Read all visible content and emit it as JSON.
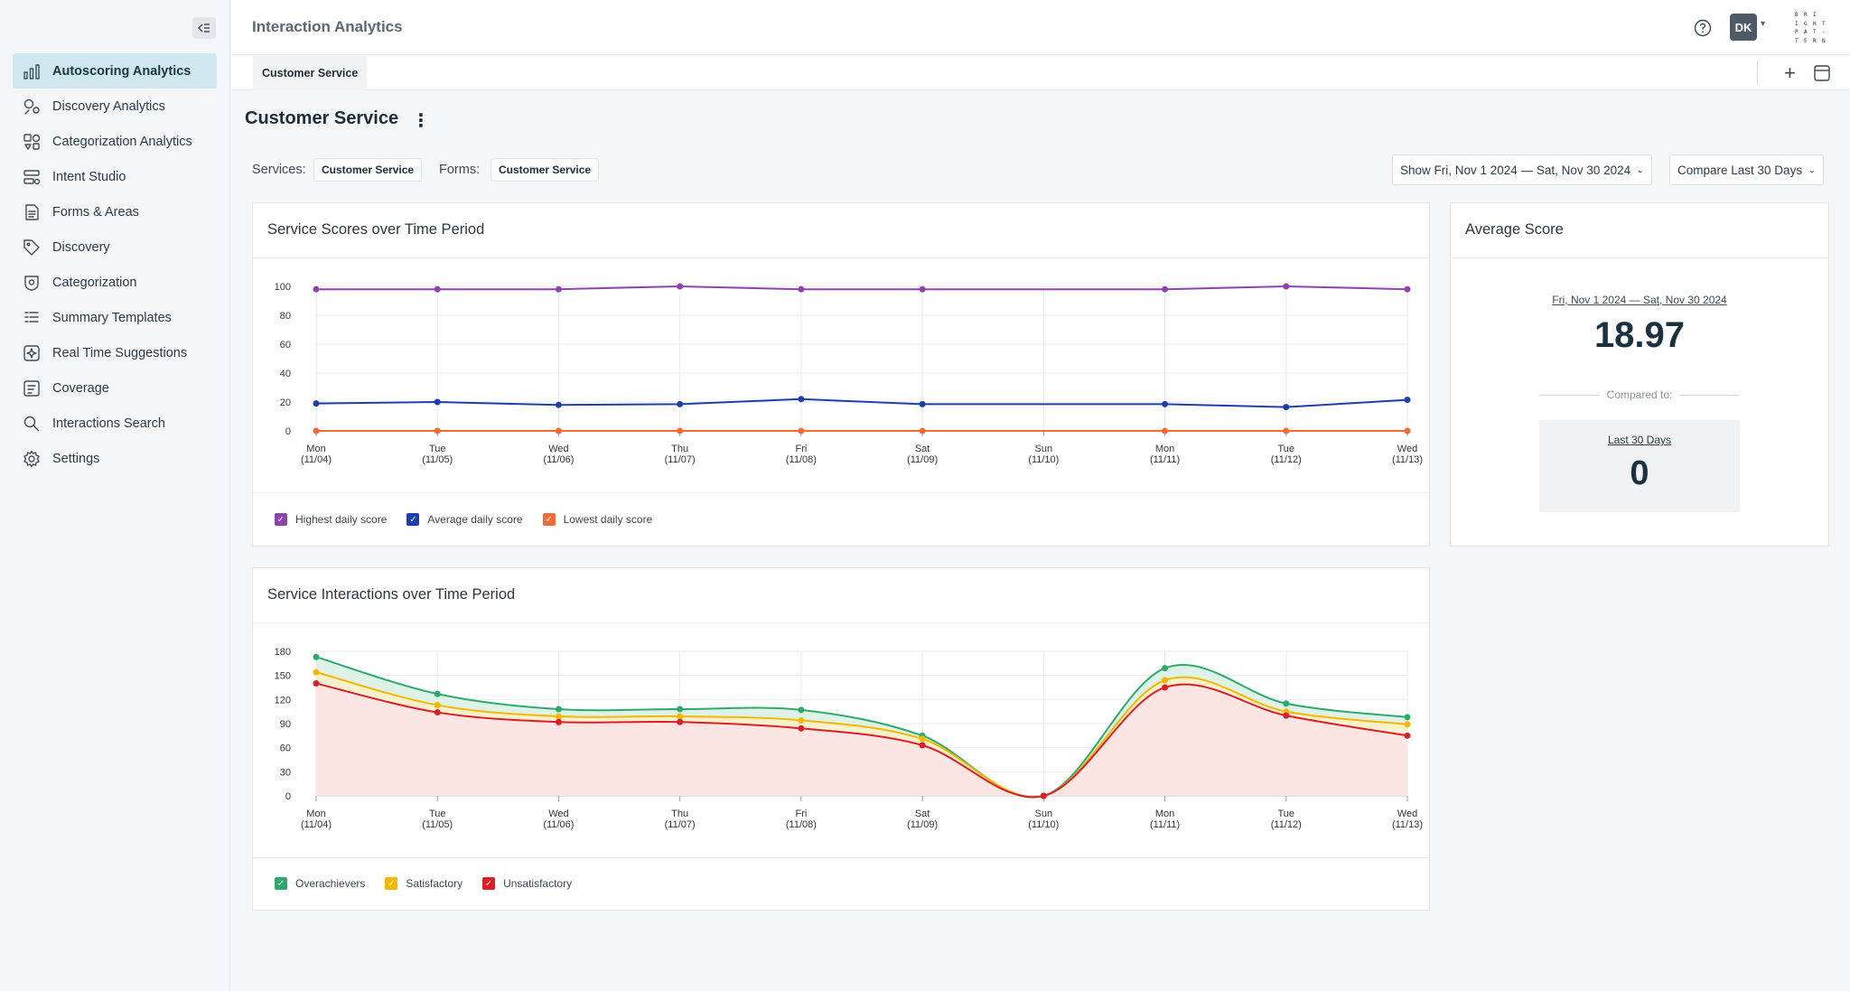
{
  "sidebar": {
    "items": [
      {
        "label": "Autoscoring Analytics",
        "icon": "bar-chart-icon",
        "active": true
      },
      {
        "label": "Discovery Analytics",
        "icon": "discovery-analytics-icon"
      },
      {
        "label": "Categorization Analytics",
        "icon": "categorization-analytics-icon"
      },
      {
        "label": "Intent Studio",
        "icon": "intent-studio-icon"
      },
      {
        "label": "Forms & Areas",
        "icon": "document-icon"
      },
      {
        "label": "Discovery",
        "icon": "tag-icon"
      },
      {
        "label": "Categorization",
        "icon": "category-shield-icon"
      },
      {
        "label": "Summary Templates",
        "icon": "list-icon"
      },
      {
        "label": "Real Time Suggestions",
        "icon": "sparkle-icon"
      },
      {
        "label": "Coverage",
        "icon": "coverage-icon"
      },
      {
        "label": "Interactions Search",
        "icon": "search-icon"
      },
      {
        "label": "Settings",
        "icon": "gear-icon"
      }
    ]
  },
  "topbar": {
    "title": "Interaction Analytics",
    "avatar": "DK",
    "logo_letters": [
      "B",
      "R",
      "I",
      "",
      "I",
      "G",
      "H",
      "T",
      "P",
      "A",
      "T",
      "-",
      "T",
      "E",
      "R",
      "N"
    ]
  },
  "tabs": [
    {
      "label": "Customer Service"
    }
  ],
  "header": {
    "title": "Customer Service"
  },
  "filters": {
    "services_label": "Services:",
    "services_value": "Customer Service",
    "forms_label": "Forms:",
    "forms_value": "Customer Service",
    "date_range": "Show Fri, Nov 1 2024 — Sat, Nov 30 2024",
    "compare": "Compare Last 30 Days"
  },
  "scores_card": {
    "title": "Service Scores over Time Period"
  },
  "interactions_card": {
    "title": "Service Interactions over Time Period"
  },
  "average_card": {
    "title": "Average Score",
    "range": "Fri, Nov 1 2024 — Sat, Nov 30 2024",
    "value": "18.97",
    "compared_label": "Compared to:",
    "compare_period": "Last 30 Days",
    "compare_value": "0"
  },
  "chart_data": [
    {
      "type": "line",
      "title": "Service Scores over Time Period",
      "x": [
        "Mon (11/04)",
        "Tue (11/05)",
        "Wed (11/06)",
        "Thu (11/07)",
        "Fri (11/08)",
        "Sat (11/09)",
        "Sun (11/10)",
        "Mon (11/11)",
        "Tue (11/12)",
        "Wed (11/13)"
      ],
      "x_day": [
        "Mon",
        "Tue",
        "Wed",
        "Thu",
        "Fri",
        "Sat",
        "Sun",
        "Mon",
        "Tue",
        "Wed"
      ],
      "x_date": [
        "(11/04)",
        "(11/05)",
        "(11/06)",
        "(11/07)",
        "(11/08)",
        "(11/09)",
        "(11/10)",
        "(11/11)",
        "(11/12)",
        "(11/13)"
      ],
      "yticks": [
        0,
        20,
        40,
        60,
        80,
        100
      ],
      "ylim": [
        0,
        100
      ],
      "series": [
        {
          "name": "Highest daily score",
          "color": "#8e44ad",
          "values": [
            98,
            98,
            98,
            100,
            98,
            98,
            null,
            98,
            100,
            98
          ]
        },
        {
          "name": "Average daily score",
          "color": "#1f3fa8",
          "values": [
            19,
            20,
            18,
            18.5,
            22,
            18.5,
            null,
            18.5,
            16.5,
            21.5
          ]
        },
        {
          "name": "Lowest daily score",
          "color": "#f26b3a",
          "values": [
            0,
            0,
            0,
            0,
            0,
            0,
            null,
            0,
            0,
            0
          ]
        }
      ],
      "legend": "bottom-left"
    },
    {
      "type": "area",
      "title": "Service Interactions over Time Period",
      "x": [
        "Mon (11/04)",
        "Tue (11/05)",
        "Wed (11/06)",
        "Thu (11/07)",
        "Fri (11/08)",
        "Sat (11/09)",
        "Sun (11/10)",
        "Mon (11/11)",
        "Tue (11/12)",
        "Wed (11/13)"
      ],
      "x_day": [
        "Mon",
        "Tue",
        "Wed",
        "Thu",
        "Fri",
        "Sat",
        "Sun",
        "Mon",
        "Tue",
        "Wed"
      ],
      "x_date": [
        "(11/04)",
        "(11/05)",
        "(11/06)",
        "(11/07)",
        "(11/08)",
        "(11/09)",
        "(11/10)",
        "(11/11)",
        "(11/12)",
        "(11/13)"
      ],
      "yticks": [
        0,
        30,
        60,
        90,
        120,
        150,
        180
      ],
      "ylim": [
        0,
        180
      ],
      "series": [
        {
          "name": "Overachievers",
          "color": "#2daa6b",
          "fill": "#d8f0e3",
          "values": [
            173,
            127,
            108,
            108,
            107,
            75,
            0,
            159,
            115,
            98
          ]
        },
        {
          "name": "Satisfactory",
          "color": "#f5b800",
          "fill": "#fdf1c8",
          "values": [
            154,
            113,
            99,
            99,
            94,
            71,
            0,
            144,
            105,
            89
          ]
        },
        {
          "name": "Unsatisfactory",
          "color": "#dc1f26",
          "fill": "#fde4e6",
          "values": [
            140,
            104,
            92,
            92,
            84,
            63,
            0,
            135,
            100,
            75
          ]
        }
      ],
      "legend": "bottom-left"
    }
  ]
}
